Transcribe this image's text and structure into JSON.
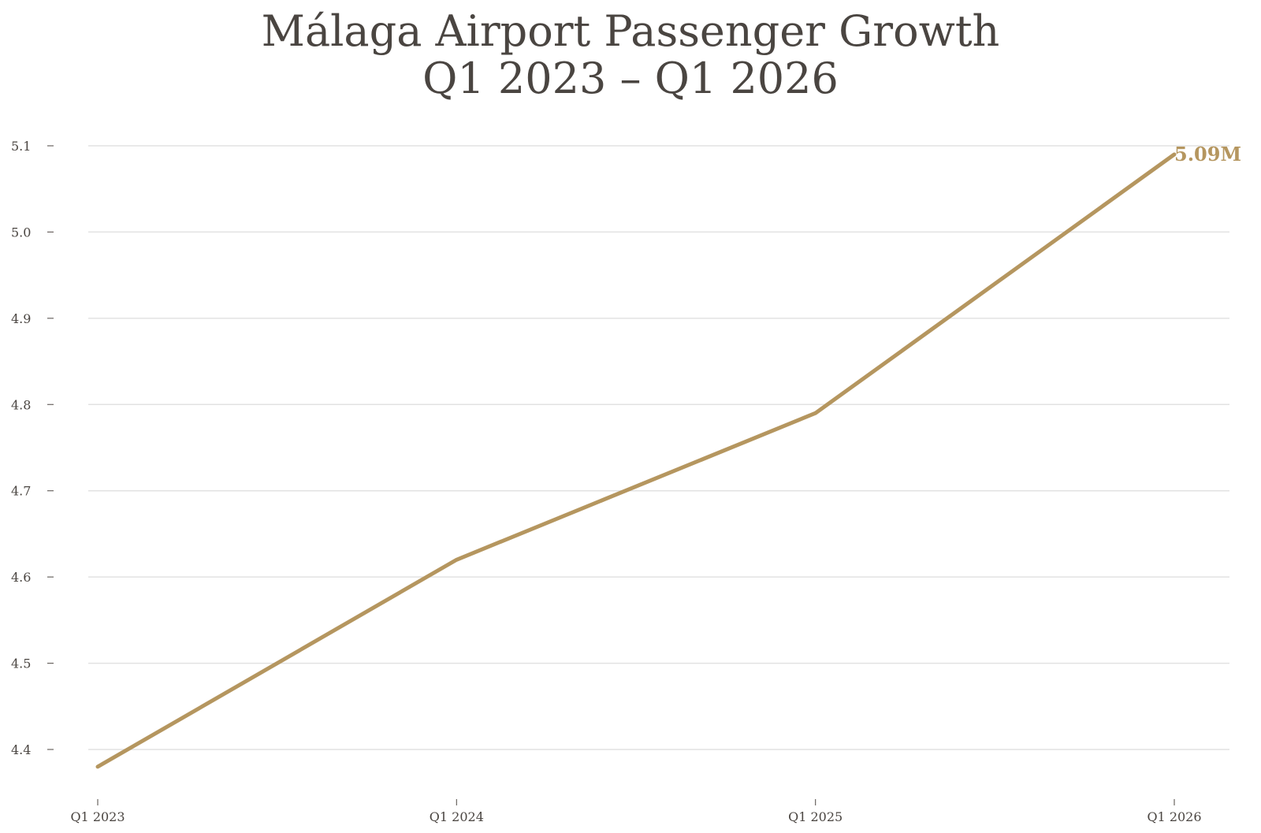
{
  "chart_data": {
    "type": "line",
    "title": [
      "Málaga Airport Passenger Growth",
      "Q1 2023 – Q1 2026"
    ],
    "xlabel": "",
    "ylabel": "",
    "categories": [
      "Q1 2023",
      "Q1 2024",
      "Q1 2025",
      "Q1 2026"
    ],
    "series": [
      {
        "values": [
          4.38,
          4.62,
          4.79,
          5.09
        ],
        "color": "#b5965f"
      }
    ],
    "ylim": [
      4.35,
      5.1
    ],
    "yticks": [
      "4.4",
      "4.5",
      "4.6",
      "4.7",
      "4.8",
      "4.9",
      "5.0",
      "5.1"
    ],
    "grid": true,
    "legend": "none",
    "annotations": [
      {
        "text": "5.09M",
        "category": "Q1 2026",
        "value": 5.09
      }
    ]
  }
}
